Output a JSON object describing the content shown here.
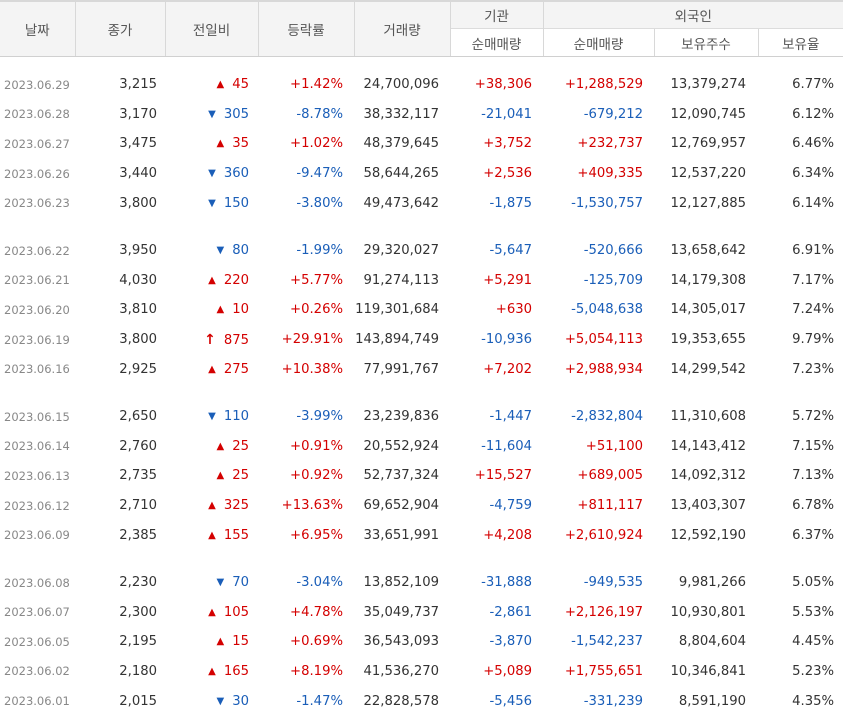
{
  "headers": {
    "date": "날짜",
    "close": "종가",
    "change": "전일비",
    "rate": "등락률",
    "volume": "거래량",
    "institution": "기관",
    "foreign": "외국인",
    "inst_net": "순매매량",
    "frgn_net": "순매매량",
    "holdings": "보유주수",
    "hold_ratio": "보유율"
  },
  "groups": [
    [
      {
        "date": "2023.06.29",
        "close": "3,215",
        "dir": "up",
        "change": "45",
        "rate": "+1.42%",
        "volume": "24,700,096",
        "inst": "+38,306",
        "frgn": "+1,288,529",
        "holdings": "13,379,274",
        "ratio": "6.77%"
      },
      {
        "date": "2023.06.28",
        "close": "3,170",
        "dir": "down",
        "change": "305",
        "rate": "-8.78%",
        "volume": "38,332,117",
        "inst": "-21,041",
        "frgn": "-679,212",
        "holdings": "12,090,745",
        "ratio": "6.12%"
      },
      {
        "date": "2023.06.27",
        "close": "3,475",
        "dir": "up",
        "change": "35",
        "rate": "+1.02%",
        "volume": "48,379,645",
        "inst": "+3,752",
        "frgn": "+232,737",
        "holdings": "12,769,957",
        "ratio": "6.46%"
      },
      {
        "date": "2023.06.26",
        "close": "3,440",
        "dir": "down",
        "change": "360",
        "rate": "-9.47%",
        "volume": "58,644,265",
        "inst": "+2,536",
        "frgn": "+409,335",
        "holdings": "12,537,220",
        "ratio": "6.34%"
      },
      {
        "date": "2023.06.23",
        "close": "3,800",
        "dir": "down",
        "change": "150",
        "rate": "-3.80%",
        "volume": "49,473,642",
        "inst": "-1,875",
        "frgn": "-1,530,757",
        "holdings": "12,127,885",
        "ratio": "6.14%"
      }
    ],
    [
      {
        "date": "2023.06.22",
        "close": "3,950",
        "dir": "down",
        "change": "80",
        "rate": "-1.99%",
        "volume": "29,320,027",
        "inst": "-5,647",
        "frgn": "-520,666",
        "holdings": "13,658,642",
        "ratio": "6.91%"
      },
      {
        "date": "2023.06.21",
        "close": "4,030",
        "dir": "up",
        "change": "220",
        "rate": "+5.77%",
        "volume": "91,274,113",
        "inst": "+5,291",
        "frgn": "-125,709",
        "holdings": "14,179,308",
        "ratio": "7.17%"
      },
      {
        "date": "2023.06.20",
        "close": "3,810",
        "dir": "up",
        "change": "10",
        "rate": "+0.26%",
        "volume": "119,301,684",
        "inst": "+630",
        "frgn": "-5,048,638",
        "holdings": "14,305,017",
        "ratio": "7.24%"
      },
      {
        "date": "2023.06.19",
        "close": "3,800",
        "dir": "limit",
        "change": "875",
        "rate": "+29.91%",
        "volume": "143,894,749",
        "inst": "-10,936",
        "frgn": "+5,054,113",
        "holdings": "19,353,655",
        "ratio": "9.79%"
      },
      {
        "date": "2023.06.16",
        "close": "2,925",
        "dir": "up",
        "change": "275",
        "rate": "+10.38%",
        "volume": "77,991,767",
        "inst": "+7,202",
        "frgn": "+2,988,934",
        "holdings": "14,299,542",
        "ratio": "7.23%"
      }
    ],
    [
      {
        "date": "2023.06.15",
        "close": "2,650",
        "dir": "down",
        "change": "110",
        "rate": "-3.99%",
        "volume": "23,239,836",
        "inst": "-1,447",
        "frgn": "-2,832,804",
        "holdings": "11,310,608",
        "ratio": "5.72%"
      },
      {
        "date": "2023.06.14",
        "close": "2,760",
        "dir": "up",
        "change": "25",
        "rate": "+0.91%",
        "volume": "20,552,924",
        "inst": "-11,604",
        "frgn": "+51,100",
        "holdings": "14,143,412",
        "ratio": "7.15%"
      },
      {
        "date": "2023.06.13",
        "close": "2,735",
        "dir": "up",
        "change": "25",
        "rate": "+0.92%",
        "volume": "52,737,324",
        "inst": "+15,527",
        "frgn": "+689,005",
        "holdings": "14,092,312",
        "ratio": "7.13%"
      },
      {
        "date": "2023.06.12",
        "close": "2,710",
        "dir": "up",
        "change": "325",
        "rate": "+13.63%",
        "volume": "69,652,904",
        "inst": "-4,759",
        "frgn": "+811,117",
        "holdings": "13,403,307",
        "ratio": "6.78%"
      },
      {
        "date": "2023.06.09",
        "close": "2,385",
        "dir": "up",
        "change": "155",
        "rate": "+6.95%",
        "volume": "33,651,991",
        "inst": "+4,208",
        "frgn": "+2,610,924",
        "holdings": "12,592,190",
        "ratio": "6.37%"
      }
    ],
    [
      {
        "date": "2023.06.08",
        "close": "2,230",
        "dir": "down",
        "change": "70",
        "rate": "-3.04%",
        "volume": "13,852,109",
        "inst": "-31,888",
        "frgn": "-949,535",
        "holdings": "9,981,266",
        "ratio": "5.05%"
      },
      {
        "date": "2023.06.07",
        "close": "2,300",
        "dir": "up",
        "change": "105",
        "rate": "+4.78%",
        "volume": "35,049,737",
        "inst": "-2,861",
        "frgn": "+2,126,197",
        "holdings": "10,930,801",
        "ratio": "5.53%"
      },
      {
        "date": "2023.06.05",
        "close": "2,195",
        "dir": "up",
        "change": "15",
        "rate": "+0.69%",
        "volume": "36,543,093",
        "inst": "-3,870",
        "frgn": "-1,542,237",
        "holdings": "8,804,604",
        "ratio": "4.45%"
      },
      {
        "date": "2023.06.02",
        "close": "2,180",
        "dir": "up",
        "change": "165",
        "rate": "+8.19%",
        "volume": "41,536,270",
        "inst": "+5,089",
        "frgn": "+1,755,651",
        "holdings": "10,346,841",
        "ratio": "5.23%"
      },
      {
        "date": "2023.06.01",
        "close": "2,015",
        "dir": "down",
        "change": "30",
        "rate": "-1.47%",
        "volume": "22,828,578",
        "inst": "-5,456",
        "frgn": "-331,239",
        "holdings": "8,591,190",
        "ratio": "4.35%"
      }
    ]
  ],
  "icons": {
    "up": "triangle-up",
    "down": "triangle-down",
    "limit": "arrow-up"
  },
  "colors": {
    "up": "#d40000",
    "down": "#1a5eb8",
    "header_bg": "#f4f4f4"
  }
}
